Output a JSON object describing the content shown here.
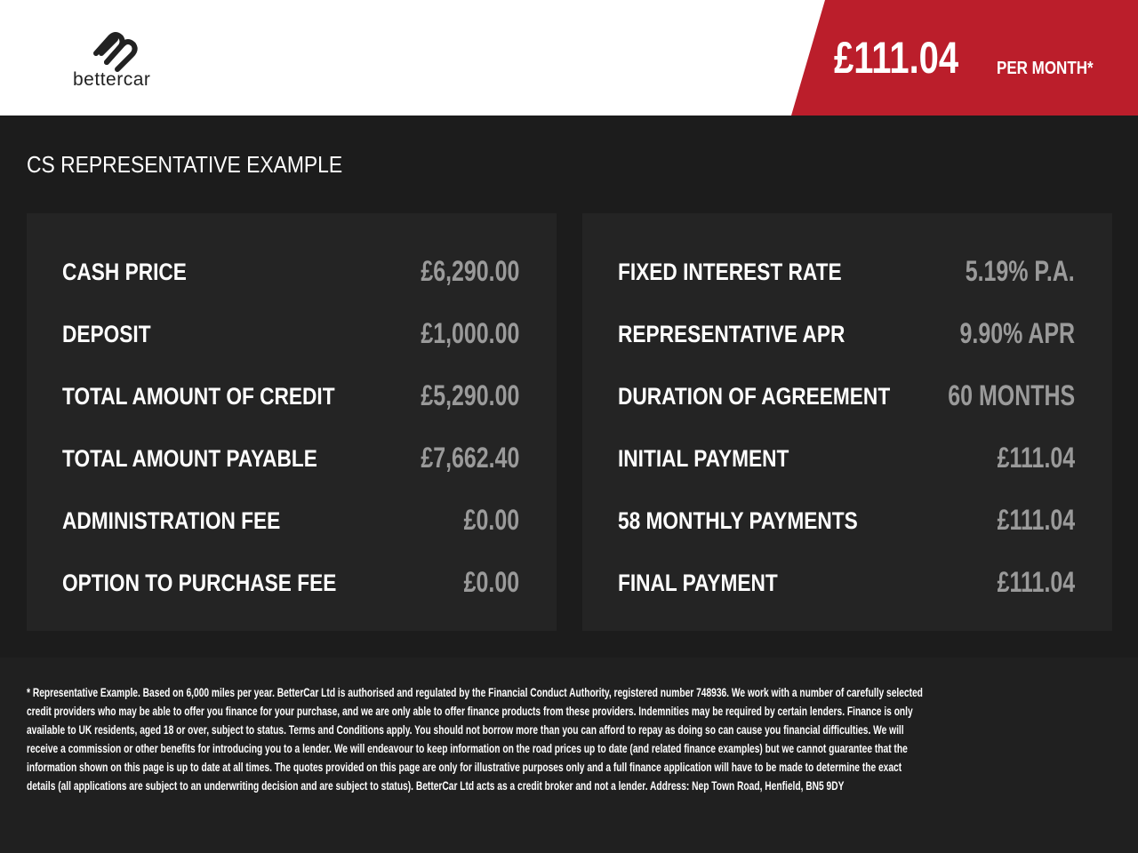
{
  "header": {
    "logo_text": "bettercar",
    "price": "£111.04",
    "price_suffix": "PER MONTH*",
    "accent_color": "#bb1e2b"
  },
  "section_title": "CS REPRESENTATIVE EXAMPLE",
  "left_panel": [
    {
      "label": "CASH PRICE",
      "value": "£6,290.00"
    },
    {
      "label": "DEPOSIT",
      "value": "£1,000.00"
    },
    {
      "label": "TOTAL AMOUNT OF CREDIT",
      "value": "£5,290.00"
    },
    {
      "label": "TOTAL AMOUNT PAYABLE",
      "value": "£7,662.40"
    },
    {
      "label": "ADMINISTRATION FEE",
      "value": "£0.00"
    },
    {
      "label": "OPTION TO PURCHASE FEE",
      "value": "£0.00"
    }
  ],
  "right_panel": [
    {
      "label": "FIXED INTEREST RATE",
      "value": "5.19% P.A."
    },
    {
      "label": "REPRESENTATIVE APR",
      "value": "9.90% APR"
    },
    {
      "label": "DURATION OF AGREEMENT",
      "value": "60 MONTHS"
    },
    {
      "label": "INITIAL PAYMENT",
      "value": "£111.04"
    },
    {
      "label": "58 MONTHLY PAYMENTS",
      "value": "£111.04"
    },
    {
      "label": "FINAL PAYMENT",
      "value": "£111.04"
    }
  ],
  "disclaimer_lines": [
    "* Representative Example. Based on 6,000 miles per year. BetterCar Ltd is authorised and regulated by the Financial Conduct Authority, registered number 748936. We work with a number of carefully selected",
    "credit providers who may be able to offer you finance for your purchase, and we are only able to offer finance products from these providers. Indemnities may be required by certain lenders. Finance is only",
    "available to UK residents, aged 18 or over, subject to status. Terms and Conditions apply. You should not borrow more than you can afford to repay as doing so can cause you financial difficulties. We will",
    "receive a commission or other benefits for introducing you to a lender. We will endeavour to keep information on the road prices up to date (and related finance examples) but we cannot guarantee that the",
    "information shown on this page is up to date at all times. The quotes provided on this page are only for illustrative purposes only and a full finance application will have to be made to determine the exact",
    "details (all applications are subject to an underwriting decision and are subject to status). BetterCar Ltd acts as a credit broker and not a lender. Address: Nep Town Road, Henfield, BN5 9DY"
  ]
}
